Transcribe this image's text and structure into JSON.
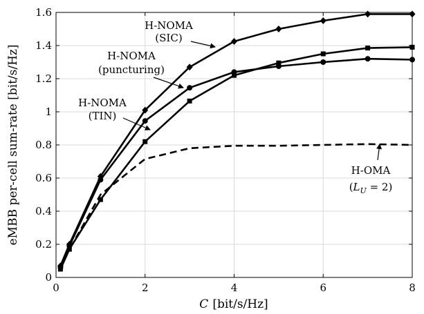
{
  "chart_data": {
    "type": "line",
    "xlabel_var": "C",
    "xlabel_unit": "[bit/s/Hz]",
    "ylabel": "eMBB per-cell sum-rate [bit/s/Hz]",
    "xlim": [
      0,
      8
    ],
    "ylim": [
      0,
      1.6
    ],
    "xticks": [
      "0",
      "2",
      "4",
      "6",
      "8"
    ],
    "yticks": [
      "0",
      "0.2",
      "0.4",
      "0.6",
      "0.8",
      "1",
      "1.2",
      "1.4",
      "1.6"
    ],
    "grid": true,
    "series": [
      {
        "marker": "diamond",
        "dash": "solid",
        "color": "#000000",
        "x": [
          0.1,
          0.3,
          1,
          2,
          3,
          4,
          5,
          6,
          7,
          8
        ],
        "y": [
          0.07,
          0.2,
          0.61,
          1.01,
          1.27,
          1.425,
          1.5,
          1.55,
          1.59,
          1.59
        ]
      },
      {
        "marker": "circle",
        "dash": "solid",
        "color": "#000000",
        "x": [
          0.1,
          0.3,
          1,
          2,
          3,
          4,
          5,
          6,
          7,
          8
        ],
        "y": [
          0.06,
          0.19,
          0.59,
          0.945,
          1.145,
          1.24,
          1.275,
          1.3,
          1.32,
          1.315
        ]
      },
      {
        "marker": "square",
        "dash": "solid",
        "color": "#000000",
        "x": [
          0.1,
          0.3,
          1,
          2,
          3,
          4,
          5,
          6,
          7,
          8
        ],
        "y": [
          0.05,
          0.17,
          0.47,
          0.82,
          1.065,
          1.22,
          1.295,
          1.35,
          1.385,
          1.39
        ]
      },
      {
        "marker": "none",
        "dash": "dashed",
        "color": "#000000",
        "x": [
          0.1,
          0.3,
          1,
          2,
          3,
          4,
          5,
          6,
          7,
          8
        ],
        "y": [
          0.06,
          0.17,
          0.5,
          0.715,
          0.78,
          0.795,
          0.795,
          0.8,
          0.805,
          0.8
        ]
      }
    ],
    "annotations": [
      {
        "lines": [
          "H-NOMA",
          "(SIC)"
        ]
      },
      {
        "lines": [
          "H-NOMA",
          "(puncturing)"
        ]
      },
      {
        "lines": [
          "H-NOMA",
          "(TIN)"
        ]
      },
      {
        "lines": [
          "H-OMA"
        ],
        "math_var": "L",
        "math_sub": "U",
        "math_rest": " = 2)"
      }
    ]
  }
}
